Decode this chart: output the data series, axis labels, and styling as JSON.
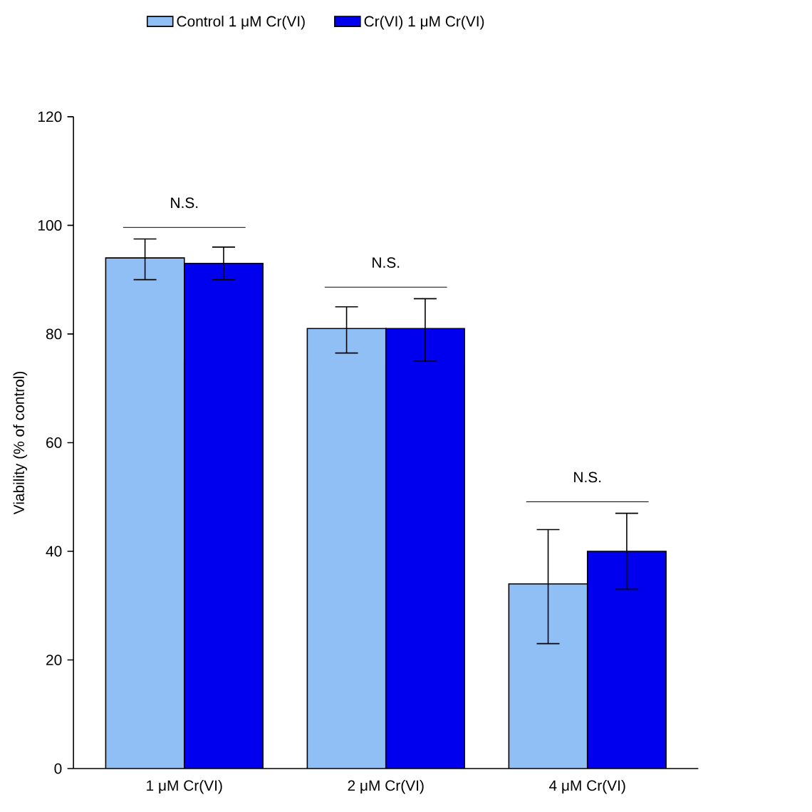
{
  "chart_data": {
    "type": "bar",
    "ylabel": "Viability (% of control)",
    "categories": [
      "1 μM Cr(VI)",
      "2 μM Cr(VI)",
      "4 μM Cr(VI)"
    ],
    "series": [
      {
        "name": "Control 1 μM Cr(VI)",
        "color": "#8fbff5",
        "values": [
          94,
          81,
          34
        ],
        "errors": [
          [
            90,
            97.5
          ],
          [
            76.5,
            85
          ],
          [
            23,
            44
          ]
        ]
      },
      {
        "name": "Cr(VI) 1 μM Cr(VI)",
        "color": "#0000ee",
        "values": [
          93,
          81,
          40
        ],
        "errors": [
          [
            90,
            96
          ],
          [
            75,
            86.5
          ],
          [
            33,
            47
          ]
        ]
      }
    ],
    "ylim": [
      0,
      120
    ],
    "yticks": [
      0,
      20,
      40,
      60,
      80,
      100,
      120
    ],
    "grid": false,
    "legend": "top",
    "annotations": [
      "N.S.",
      "N.S.",
      "N.S."
    ]
  }
}
